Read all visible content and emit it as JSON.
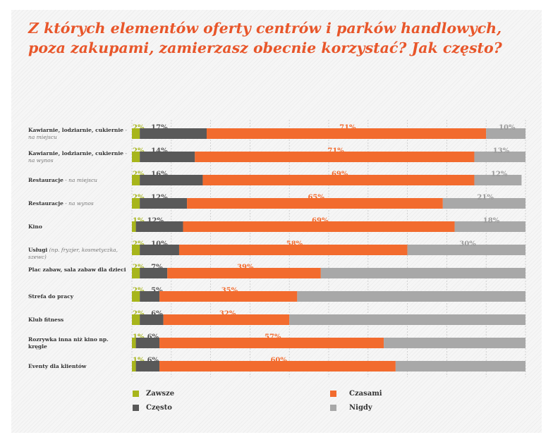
{
  "header": {
    "title_line1": "Z których elementów oferty centrów i parków handlowych,",
    "title_line2": "poza zakupami, zamierzasz obecnie korzystać? Jak często?"
  },
  "colors": {
    "zawsze": "#a7b51b",
    "czesto": "#595959",
    "czasami": "#f26b2e",
    "nigdy": "#a8a8a8",
    "title": "#e8562a"
  },
  "chart_data": {
    "type": "bar",
    "orientation": "horizontal",
    "stacked": true,
    "xlim": [
      0,
      100
    ],
    "grid": true,
    "legend_position": "bottom",
    "categories": [
      {
        "label": "Kawiarnie, lodziarnie, cukiernie",
        "note": "- na miejscu"
      },
      {
        "label": "Kawiarnie, lodziarnie, cukiernie",
        "note": "- na wynos"
      },
      {
        "label": "Restauracje",
        "note": "- na miejscu"
      },
      {
        "label": "Restauracje",
        "note": "- na wynos"
      },
      {
        "label": "Kino",
        "note": ""
      },
      {
        "label": "Usługi",
        "note": "(np. fryzjer, kosmetyczka, szewc)"
      },
      {
        "label": "Plac zabaw, sala zabaw dla dzieci",
        "note": ""
      },
      {
        "label": "Strefa do pracy",
        "note": ""
      },
      {
        "label": "Klub fitness",
        "note": ""
      },
      {
        "label": "Rozrywka inna niż kino np. kręgle",
        "note": ""
      },
      {
        "label": "Eventy dla klientów",
        "note": ""
      }
    ],
    "series": [
      {
        "name": "Zawsze",
        "key": "zawsze",
        "values": [
          2,
          2,
          2,
          2,
          1,
          2,
          2,
          2,
          2,
          1,
          1
        ],
        "labels": [
          "2%",
          "2%",
          "2%",
          "2%",
          "1%",
          "2%",
          "2%",
          "2%",
          "2%",
          "1%",
          "1%"
        ]
      },
      {
        "name": "Często",
        "key": "czesto",
        "values": [
          17,
          14,
          16,
          12,
          12,
          10,
          7,
          5,
          6,
          6,
          6
        ],
        "labels": [
          "17%",
          "14%",
          "16%",
          "12%",
          "12%",
          "10%",
          "7%",
          "5%",
          "6%",
          "6%",
          "6%"
        ]
      },
      {
        "name": "Czasami",
        "key": "czasami",
        "values": [
          71,
          71,
          69,
          65,
          69,
          58,
          39,
          35,
          32,
          57,
          60
        ],
        "labels": [
          "71%",
          "71%",
          "69%",
          "65%",
          "69%",
          "58%",
          "39%",
          "35%",
          "32%",
          "57%",
          "60%"
        ]
      },
      {
        "name": "Nigdy",
        "key": "nigdy",
        "values": [
          10,
          13,
          12,
          21,
          18,
          30,
          52,
          58,
          60,
          36,
          33
        ],
        "labels": [
          "10%",
          "13%",
          "12%",
          "21%",
          "18%",
          "30%",
          "",
          "",
          "",
          "",
          ""
        ]
      }
    ]
  }
}
